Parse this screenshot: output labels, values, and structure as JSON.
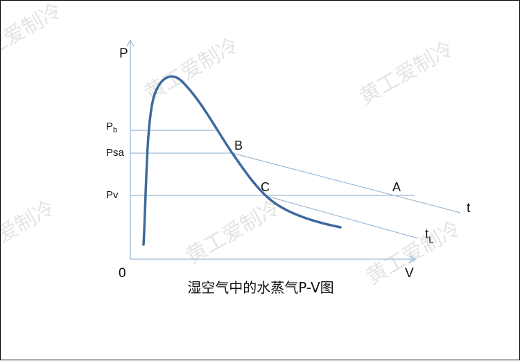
{
  "labels": {
    "p_axis": "P",
    "v_axis": "V",
    "origin": "0",
    "pb_main": "P",
    "pb_sub": "b",
    "psa": "Psa",
    "pv": "Pv",
    "point_a": "A",
    "point_b": "B",
    "point_c": "C",
    "line_t": "t",
    "line_tl_main": "t",
    "line_tl_sub": "L"
  },
  "caption": "湿空气中的水蒸气P-V图",
  "watermark": "黄工爱制冷",
  "colors": {
    "curve": "#3e6a9c",
    "guide_lines": "#9dbbd6",
    "axes": "#9dbbd6"
  }
}
